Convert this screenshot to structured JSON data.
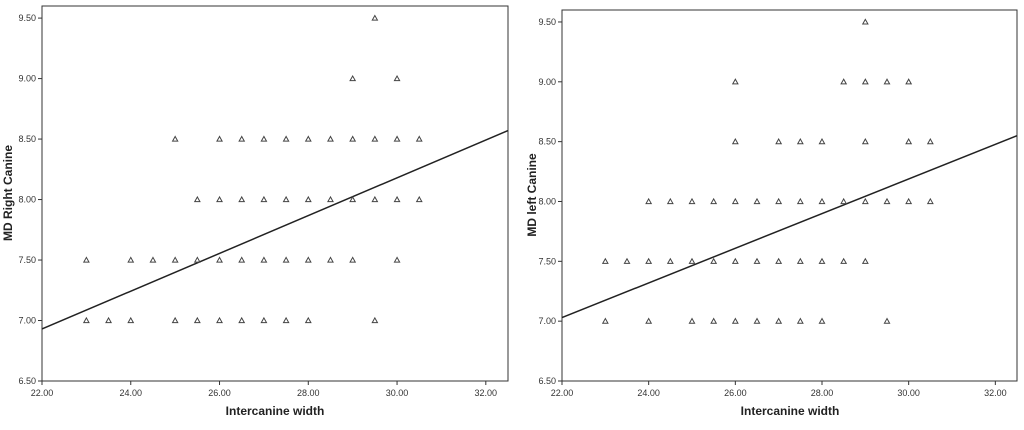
{
  "chart_data": [
    {
      "type": "scatter",
      "title": "",
      "xlabel": "Intercanine width",
      "ylabel": "MD Right Canine",
      "xlim": [
        22,
        32.5
      ],
      "ylim": [
        6.5,
        9.6
      ],
      "xticks": [
        "22.00",
        "24.00",
        "26.00",
        "28.00",
        "30.00",
        "32.00"
      ],
      "yticks": [
        "6.50",
        "7.00",
        "7.50",
        "8.00",
        "8.50",
        "9.00",
        "9.50"
      ],
      "grid": false,
      "marker": "triangle",
      "fit_line": {
        "x": [
          22,
          32.5
        ],
        "y": [
          6.93,
          8.57
        ]
      },
      "points": [
        [
          23,
          7.0
        ],
        [
          23.5,
          7.0
        ],
        [
          24,
          7.0
        ],
        [
          25,
          7.0
        ],
        [
          25.5,
          7.0
        ],
        [
          26,
          7.0
        ],
        [
          26.5,
          7.0
        ],
        [
          27,
          7.0
        ],
        [
          27.5,
          7.0
        ],
        [
          28,
          7.0
        ],
        [
          29.5,
          7.0
        ],
        [
          23,
          7.5
        ],
        [
          24,
          7.5
        ],
        [
          24.5,
          7.5
        ],
        [
          25,
          7.5
        ],
        [
          25.5,
          7.5
        ],
        [
          26,
          7.5
        ],
        [
          26.5,
          7.5
        ],
        [
          27,
          7.5
        ],
        [
          27.5,
          7.5
        ],
        [
          28,
          7.5
        ],
        [
          28.5,
          7.5
        ],
        [
          29,
          7.5
        ],
        [
          30,
          7.5
        ],
        [
          25.5,
          8.0
        ],
        [
          26,
          8.0
        ],
        [
          26.5,
          8.0
        ],
        [
          27,
          8.0
        ],
        [
          27.5,
          8.0
        ],
        [
          28,
          8.0
        ],
        [
          28.5,
          8.0
        ],
        [
          29,
          8.0
        ],
        [
          29.5,
          8.0
        ],
        [
          30,
          8.0
        ],
        [
          30.5,
          8.0
        ],
        [
          25,
          8.5
        ],
        [
          26,
          8.5
        ],
        [
          26.5,
          8.5
        ],
        [
          27,
          8.5
        ],
        [
          27.5,
          8.5
        ],
        [
          28,
          8.5
        ],
        [
          28.5,
          8.5
        ],
        [
          29,
          8.5
        ],
        [
          29.5,
          8.5
        ],
        [
          30,
          8.5
        ],
        [
          30.5,
          8.5
        ],
        [
          29,
          9.0
        ],
        [
          30,
          9.0
        ],
        [
          29.5,
          9.5
        ]
      ]
    },
    {
      "type": "scatter",
      "title": "",
      "xlabel": "Intercanine width",
      "ylabel": "MD left Canine",
      "xlim": [
        22,
        32.5
      ],
      "ylim": [
        6.5,
        9.6
      ],
      "xticks": [
        "22.00",
        "24.00",
        "26.00",
        "28.00",
        "30.00",
        "32.00"
      ],
      "yticks": [
        "6.50",
        "7.00",
        "7.50",
        "8.00",
        "8.50",
        "9.00",
        "9.50"
      ],
      "grid": false,
      "marker": "triangle",
      "fit_line": {
        "x": [
          22,
          32.5
        ],
        "y": [
          7.03,
          8.55
        ]
      },
      "points": [
        [
          23,
          7.0
        ],
        [
          24,
          7.0
        ],
        [
          25,
          7.0
        ],
        [
          25.5,
          7.0
        ],
        [
          26,
          7.0
        ],
        [
          26.5,
          7.0
        ],
        [
          27,
          7.0
        ],
        [
          27.5,
          7.0
        ],
        [
          28,
          7.0
        ],
        [
          29.5,
          7.0
        ],
        [
          23,
          7.5
        ],
        [
          23.5,
          7.5
        ],
        [
          24,
          7.5
        ],
        [
          24.5,
          7.5
        ],
        [
          25,
          7.5
        ],
        [
          25.5,
          7.5
        ],
        [
          26,
          7.5
        ],
        [
          26.5,
          7.5
        ],
        [
          27,
          7.5
        ],
        [
          27.5,
          7.5
        ],
        [
          28,
          7.5
        ],
        [
          28.5,
          7.5
        ],
        [
          29,
          7.5
        ],
        [
          24,
          8.0
        ],
        [
          24.5,
          8.0
        ],
        [
          25,
          8.0
        ],
        [
          25.5,
          8.0
        ],
        [
          26,
          8.0
        ],
        [
          26.5,
          8.0
        ],
        [
          27,
          8.0
        ],
        [
          27.5,
          8.0
        ],
        [
          28,
          8.0
        ],
        [
          28.5,
          8.0
        ],
        [
          29,
          8.0
        ],
        [
          29.5,
          8.0
        ],
        [
          30,
          8.0
        ],
        [
          30.5,
          8.0
        ],
        [
          26,
          8.5
        ],
        [
          27,
          8.5
        ],
        [
          27.5,
          8.5
        ],
        [
          28,
          8.5
        ],
        [
          29,
          8.5
        ],
        [
          30,
          8.5
        ],
        [
          30.5,
          8.5
        ],
        [
          26,
          9.0
        ],
        [
          28.5,
          9.0
        ],
        [
          29,
          9.0
        ],
        [
          29.5,
          9.0
        ],
        [
          30,
          9.0
        ],
        [
          29,
          9.5
        ]
      ]
    }
  ]
}
